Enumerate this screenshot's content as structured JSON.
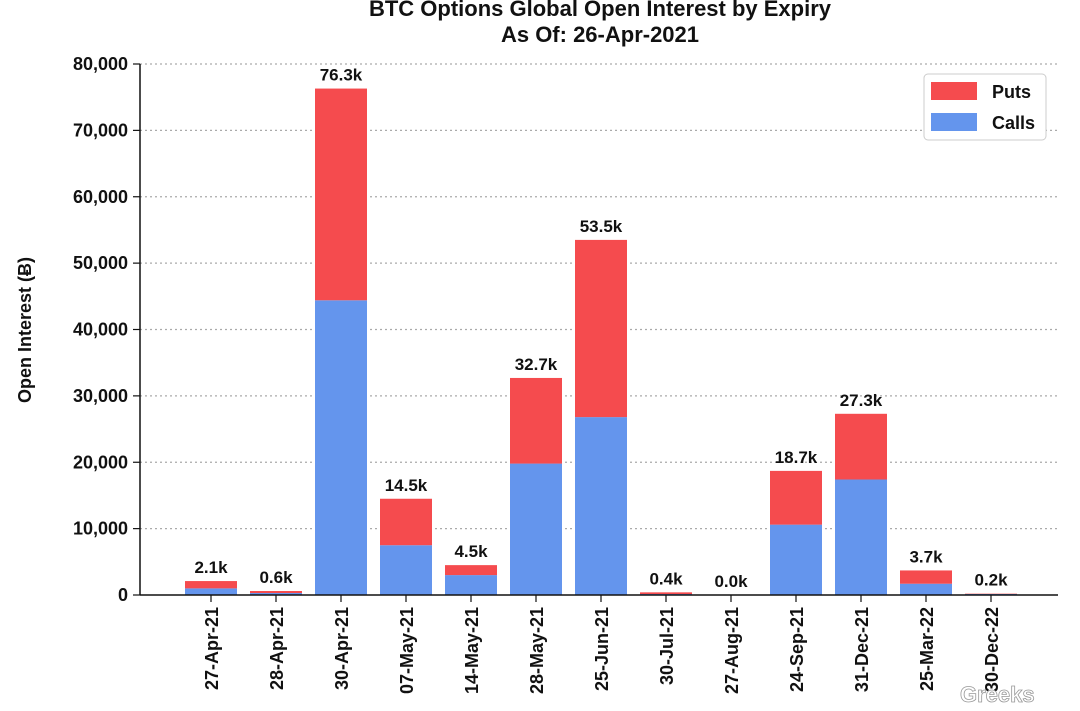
{
  "watermark": "Greeks",
  "colors": {
    "puts": "#f54b4e",
    "calls": "#6495ed",
    "grid": "#aaaaaa",
    "axis": "#111111"
  },
  "chart_data": {
    "type": "bar",
    "stacked": true,
    "title": "BTC Options Global Open Interest by Expiry",
    "subtitle": "As Of: 26-Apr-2021",
    "xlabel": "",
    "ylabel": "Open Interest (Ƀ)",
    "ylim": [
      0,
      80000
    ],
    "yticks": [
      "0",
      "10,000",
      "20,000",
      "30,000",
      "40,000",
      "50,000",
      "60,000",
      "70,000",
      "80,000"
    ],
    "grid": "horizontal dotted",
    "legend_position": "top-right",
    "categories": [
      "27-Apr-21",
      "28-Apr-21",
      "30-Apr-21",
      "07-May-21",
      "14-May-21",
      "28-May-21",
      "25-Jun-21",
      "30-Jul-21",
      "27-Aug-21",
      "24-Sep-21",
      "31-Dec-21",
      "25-Mar-22",
      "30-Dec-22"
    ],
    "series": [
      {
        "name": "Calls",
        "values": [
          1000,
          300,
          44400,
          7500,
          3000,
          19800,
          26800,
          150,
          0,
          10600,
          17400,
          1700,
          150
        ]
      },
      {
        "name": "Puts",
        "values": [
          1100,
          300,
          31900,
          7000,
          1500,
          12900,
          26700,
          250,
          0,
          8100,
          9900,
          2000,
          50
        ]
      }
    ],
    "data_labels": [
      "2.1k",
      "0.6k",
      "76.3k",
      "14.5k",
      "4.5k",
      "32.7k",
      "53.5k",
      "0.4k",
      "0.0k",
      "18.7k",
      "27.3k",
      "3.7k",
      "0.2k"
    ],
    "legend_order": [
      "Puts",
      "Calls"
    ]
  }
}
